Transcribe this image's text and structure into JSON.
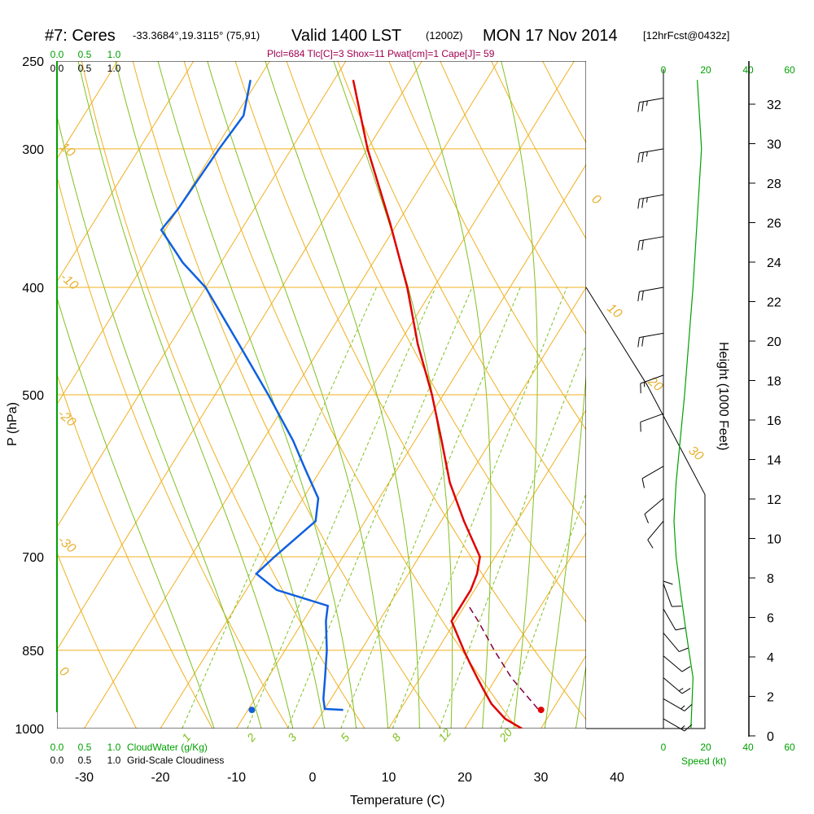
{
  "header": {
    "station": "#7: Ceres",
    "coords": "-33.3684°,19.3115° (75,91)",
    "valid": "Valid 1400 LST",
    "utc": "(1200Z)",
    "date": "MON 17 Nov 2014",
    "forecast": "[12hrFcst@0432z]",
    "params": "Plcl=684 Tlc[C]=3 Shox=11 Pwat[cm]=1 Cape[J]= 59"
  },
  "labels": {
    "pressure_axis": "P (hPa)",
    "temperature_axis": "Temperature (C)",
    "height_axis": "Height (1000 Feet)",
    "cloud_water": "CloudWater (g/Kg)",
    "grid_cloudiness": "Grid-Scale Cloudiness",
    "speed": "Speed (kt)"
  },
  "colors": {
    "temperature": "#e00000",
    "dewpoint": "#1060e0",
    "isotherm": "#f0b020",
    "dry_adiabat": "#f0b020",
    "moist_adiabat": "#80c020",
    "mixing_ratio": "#80c020",
    "parcel": "#800040",
    "cloud_scale": "#00a000",
    "wind_speed": "#00a000"
  },
  "chart_data": {
    "type": "skew-t",
    "pressure_ticks": [
      "250",
      "300",
      "400",
      "500",
      "700",
      "850",
      "1000"
    ],
    "temperature_ticks": [
      "-30",
      "-20",
      "-10",
      "0",
      "10",
      "20",
      "30",
      "40"
    ],
    "height_ticks": [
      "0",
      "2",
      "4",
      "6",
      "8",
      "10",
      "12",
      "14",
      "16",
      "18",
      "20",
      "22",
      "24",
      "26",
      "28",
      "30",
      "32"
    ],
    "cloud_scale_ticks_green": [
      "0.0",
      "0.5",
      "1.0"
    ],
    "cloud_scale_ticks_black": [
      "0.0",
      "0.5",
      "1.0"
    ],
    "speed_ticks": [
      "0",
      "20",
      "40",
      "60"
    ],
    "isotherm_labels": [
      "10",
      "0",
      "-10",
      "-20",
      "-30",
      "0",
      "10",
      "20",
      "30"
    ],
    "mixing_ratio_labels": [
      "1",
      "2",
      "3",
      "5",
      "8",
      "12",
      "20"
    ],
    "temperature_profile": [
      {
        "p": 1000,
        "t": 27.5
      },
      {
        "p": 980,
        "t": 24.5
      },
      {
        "p": 950,
        "t": 21.5
      },
      {
        "p": 925,
        "t": 19.5
      },
      {
        "p": 900,
        "t": 17.5
      },
      {
        "p": 875,
        "t": 15.5
      },
      {
        "p": 850,
        "t": 13.5
      },
      {
        "p": 800,
        "t": 9.5
      },
      {
        "p": 775,
        "t": 9.5
      },
      {
        "p": 750,
        "t": 9.5
      },
      {
        "p": 725,
        "t": 9.0
      },
      {
        "p": 700,
        "t": 8.0
      },
      {
        "p": 650,
        "t": 3.0
      },
      {
        "p": 600,
        "t": -2.0
      },
      {
        "p": 550,
        "t": -6.5
      },
      {
        "p": 500,
        "t": -11.5
      },
      {
        "p": 450,
        "t": -17.5
      },
      {
        "p": 400,
        "t": -23.5
      },
      {
        "p": 350,
        "t": -31.0
      },
      {
        "p": 300,
        "t": -40.0
      },
      {
        "p": 260,
        "t": -47.5
      }
    ],
    "dewpoint_profile": [
      {
        "p": 962,
        "t": 2.5
      },
      {
        "p": 960,
        "t": 0.0
      },
      {
        "p": 940,
        "t": -1.0
      },
      {
        "p": 900,
        "t": -2.5
      },
      {
        "p": 850,
        "t": -4.5
      },
      {
        "p": 800,
        "t": -7.0
      },
      {
        "p": 775,
        "t": -8.0
      },
      {
        "p": 750,
        "t": -16.0
      },
      {
        "p": 725,
        "t": -20.0
      },
      {
        "p": 700,
        "t": -19.0
      },
      {
        "p": 650,
        "t": -16.5
      },
      {
        "p": 620,
        "t": -18.0
      },
      {
        "p": 580,
        "t": -22.5
      },
      {
        "p": 550,
        "t": -26.0
      },
      {
        "p": 500,
        "t": -33.0
      },
      {
        "p": 450,
        "t": -41.0
      },
      {
        "p": 400,
        "t": -50.0
      },
      {
        "p": 380,
        "t": -55.0
      },
      {
        "p": 355,
        "t": -60.5
      },
      {
        "p": 340,
        "t": -60.0
      },
      {
        "p": 300,
        "t": -59.5
      },
      {
        "p": 280,
        "t": -59.0
      },
      {
        "p": 260,
        "t": -61.0
      }
    ],
    "parcel_profile": [
      {
        "p": 960,
        "t": 28.0
      },
      {
        "p": 900,
        "t": 22.0
      },
      {
        "p": 850,
        "t": 17.5
      },
      {
        "p": 800,
        "t": 13.0
      },
      {
        "p": 775,
        "t": 10.5
      }
    ],
    "surface_temperature": {
      "p": 962,
      "t": 28.5
    },
    "surface_dewpoint": {
      "p": 962,
      "t": -9.5
    },
    "wind_speed_profile": [
      {
        "p": 1000,
        "s": 13
      },
      {
        "p": 900,
        "s": 14
      },
      {
        "p": 850,
        "s": 12
      },
      {
        "p": 800,
        "s": 10
      },
      {
        "p": 750,
        "s": 8
      },
      {
        "p": 700,
        "s": 6
      },
      {
        "p": 650,
        "s": 5
      },
      {
        "p": 600,
        "s": 6
      },
      {
        "p": 500,
        "s": 10
      },
      {
        "p": 400,
        "s": 14
      },
      {
        "p": 300,
        "s": 18
      },
      {
        "p": 260,
        "s": 16
      }
    ],
    "wind_barbs": [
      {
        "p": 270,
        "dir": 260,
        "spd": 25
      },
      {
        "p": 300,
        "dir": 260,
        "spd": 25
      },
      {
        "p": 330,
        "dir": 260,
        "spd": 25
      },
      {
        "p": 360,
        "dir": 260,
        "spd": 20
      },
      {
        "p": 400,
        "dir": 260,
        "spd": 20
      },
      {
        "p": 440,
        "dir": 260,
        "spd": 20
      },
      {
        "p": 480,
        "dir": 250,
        "spd": 15
      },
      {
        "p": 520,
        "dir": 250,
        "spd": 10
      },
      {
        "p": 580,
        "dir": 240,
        "spd": 10
      },
      {
        "p": 620,
        "dir": 230,
        "spd": 10
      },
      {
        "p": 650,
        "dir": 220,
        "spd": 10
      },
      {
        "p": 700,
        "dir": 180,
        "spd": 10
      },
      {
        "p": 740,
        "dir": 160,
        "spd": 10
      },
      {
        "p": 780,
        "dir": 150,
        "spd": 10
      },
      {
        "p": 820,
        "dir": 140,
        "spd": 10
      },
      {
        "p": 860,
        "dir": 130,
        "spd": 10
      },
      {
        "p": 900,
        "dir": 130,
        "spd": 15
      },
      {
        "p": 940,
        "dir": 120,
        "spd": 15
      },
      {
        "p": 980,
        "dir": 120,
        "spd": 15
      }
    ]
  }
}
